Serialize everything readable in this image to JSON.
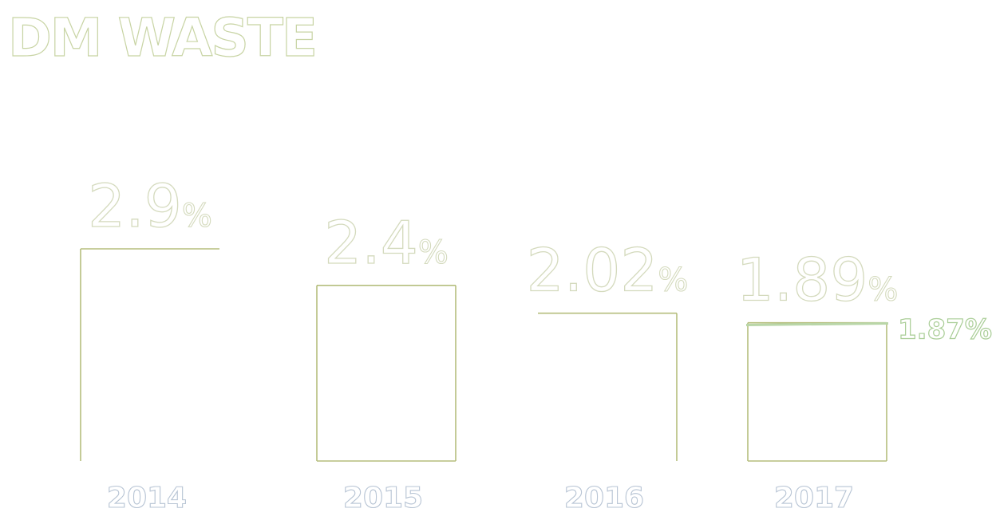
{
  "title": "DM WASTE",
  "chart_data": {
    "type": "bar",
    "title": "DM WASTE",
    "categories": [
      "2014",
      "2015",
      "2016",
      "2017"
    ],
    "values": [
      2.9,
      2.4,
      2.02,
      1.89
    ],
    "value_labels": [
      "2.9",
      "2.4",
      "2.02",
      "1.89"
    ],
    "value_unit": "%",
    "target": {
      "value": 1.87,
      "label": "1.87%",
      "category": "2017"
    },
    "xlabel": "",
    "ylabel": "",
    "ylim": [
      0,
      2.9
    ],
    "grid": false,
    "legend": "none"
  },
  "colors": {
    "bar_outline": "#b5be7d",
    "target_line": "#b9d6a8",
    "text_outline": "#d4dabd",
    "year_outline": "#b7c4d4"
  }
}
